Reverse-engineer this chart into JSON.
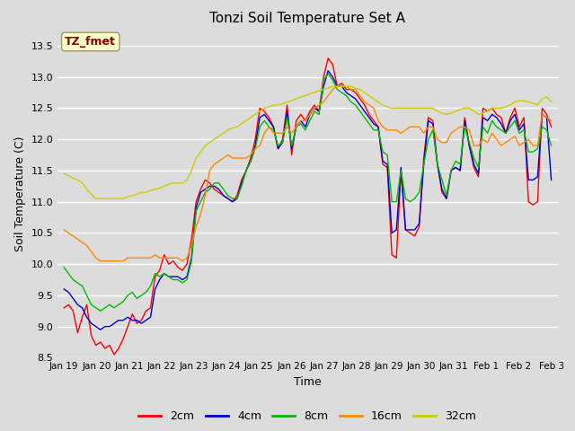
{
  "title": "Tonzi Soil Temperature Set A",
  "xlabel": "Time",
  "ylabel": "Soil Temperature (C)",
  "ylim": [
    8.5,
    13.75
  ],
  "fig_bg_color": "#dcdcdc",
  "plot_bg_color": "#dcdcdc",
  "annotation_text": "TZ_fmet",
  "annotation_color": "#8b0000",
  "annotation_bg": "#ffffcc",
  "legend_entries": [
    "2cm",
    "4cm",
    "8cm",
    "16cm",
    "32cm"
  ],
  "line_colors": [
    "#ff0000",
    "#0000cc",
    "#00bb00",
    "#ff8800",
    "#cccc00"
  ],
  "xtick_labels": [
    "Jan 19",
    "Jan 20",
    "Jan 21",
    "Jan 22",
    "Jan 23",
    "Jan 24",
    "Jan 25",
    "Jan 26",
    "Jan 27",
    "Jan 28",
    "Jan 29",
    "Jan 30",
    "Jan 31",
    "Feb 1",
    "Feb 2",
    "Feb 3"
  ],
  "series_2cm": [
    9.3,
    9.35,
    9.25,
    8.9,
    9.15,
    9.35,
    8.85,
    8.7,
    8.75,
    8.65,
    8.7,
    8.55,
    8.65,
    8.8,
    9.0,
    9.2,
    9.05,
    9.1,
    9.25,
    9.3,
    9.8,
    9.9,
    10.15,
    10.0,
    10.05,
    9.95,
    9.9,
    10.0,
    10.4,
    11.0,
    11.2,
    11.35,
    11.3,
    11.2,
    11.15,
    11.1,
    11.05,
    11.0,
    11.1,
    11.35,
    11.5,
    11.7,
    12.0,
    12.5,
    12.45,
    12.35,
    12.2,
    11.85,
    12.0,
    12.55,
    11.75,
    12.3,
    12.4,
    12.3,
    12.45,
    12.55,
    12.45,
    13.0,
    13.3,
    13.2,
    12.85,
    12.9,
    12.8,
    12.8,
    12.75,
    12.65,
    12.55,
    12.4,
    12.3,
    12.2,
    11.6,
    11.55,
    10.15,
    10.1,
    11.5,
    10.55,
    10.5,
    10.45,
    10.6,
    11.7,
    12.35,
    12.3,
    11.6,
    11.15,
    11.05,
    11.5,
    11.55,
    11.5,
    12.35,
    11.9,
    11.55,
    11.4,
    12.5,
    12.45,
    12.5,
    12.4,
    12.35,
    12.1,
    12.35,
    12.5,
    12.2,
    12.35,
    11.0,
    10.95,
    11.0,
    12.5,
    12.4,
    12.2
  ],
  "series_4cm": [
    9.6,
    9.55,
    9.45,
    9.35,
    9.3,
    9.15,
    9.05,
    9.0,
    8.95,
    9.0,
    9.0,
    9.05,
    9.1,
    9.1,
    9.15,
    9.1,
    9.1,
    9.05,
    9.1,
    9.15,
    9.6,
    9.75,
    9.85,
    9.8,
    9.8,
    9.8,
    9.75,
    9.8,
    10.1,
    10.9,
    11.15,
    11.2,
    11.25,
    11.25,
    11.2,
    11.1,
    11.05,
    11.0,
    11.05,
    11.3,
    11.5,
    11.65,
    11.9,
    12.35,
    12.4,
    12.3,
    12.2,
    11.85,
    11.95,
    12.45,
    11.85,
    12.2,
    12.3,
    12.2,
    12.4,
    12.5,
    12.45,
    12.85,
    13.1,
    13.0,
    12.85,
    12.85,
    12.75,
    12.7,
    12.65,
    12.55,
    12.45,
    12.35,
    12.25,
    12.2,
    11.65,
    11.6,
    10.5,
    10.55,
    11.55,
    10.55,
    10.55,
    10.55,
    10.65,
    11.6,
    12.3,
    12.25,
    11.6,
    11.2,
    11.05,
    11.5,
    11.55,
    11.5,
    12.3,
    11.9,
    11.6,
    11.45,
    12.35,
    12.3,
    12.4,
    12.35,
    12.25,
    12.1,
    12.3,
    12.4,
    12.15,
    12.25,
    11.35,
    11.35,
    11.4,
    12.4,
    12.35,
    11.35
  ],
  "series_8cm": [
    9.95,
    9.85,
    9.75,
    9.7,
    9.65,
    9.5,
    9.35,
    9.3,
    9.25,
    9.3,
    9.35,
    9.3,
    9.35,
    9.4,
    9.5,
    9.55,
    9.45,
    9.5,
    9.55,
    9.65,
    9.85,
    9.8,
    9.85,
    9.8,
    9.75,
    9.75,
    9.7,
    9.75,
    10.05,
    10.85,
    11.0,
    11.15,
    11.2,
    11.3,
    11.3,
    11.2,
    11.1,
    11.05,
    11.05,
    11.25,
    11.5,
    11.65,
    11.85,
    12.2,
    12.3,
    12.2,
    12.15,
    11.9,
    11.95,
    12.35,
    11.9,
    12.2,
    12.25,
    12.15,
    12.3,
    12.45,
    12.4,
    12.95,
    13.05,
    12.95,
    12.8,
    12.75,
    12.7,
    12.6,
    12.55,
    12.45,
    12.35,
    12.25,
    12.15,
    12.15,
    11.8,
    11.75,
    11.0,
    11.0,
    11.5,
    11.05,
    11.0,
    11.05,
    11.15,
    11.6,
    12.0,
    12.15,
    11.6,
    11.35,
    11.1,
    11.5,
    11.65,
    11.6,
    12.2,
    11.95,
    11.7,
    11.55,
    12.2,
    12.1,
    12.3,
    12.2,
    12.15,
    12.1,
    12.2,
    12.3,
    12.1,
    12.15,
    11.8,
    11.8,
    11.85,
    12.2,
    12.15,
    11.9
  ],
  "series_16cm": [
    10.55,
    10.5,
    10.45,
    10.4,
    10.35,
    10.3,
    10.2,
    10.1,
    10.05,
    10.05,
    10.05,
    10.05,
    10.05,
    10.05,
    10.1,
    10.1,
    10.1,
    10.1,
    10.1,
    10.1,
    10.15,
    10.1,
    10.1,
    10.1,
    10.1,
    10.1,
    10.05,
    10.1,
    10.3,
    10.6,
    10.8,
    11.1,
    11.5,
    11.6,
    11.65,
    11.7,
    11.75,
    11.7,
    11.7,
    11.7,
    11.7,
    11.75,
    11.85,
    11.9,
    12.1,
    12.2,
    12.1,
    12.1,
    12.1,
    12.2,
    12.1,
    12.2,
    12.3,
    12.3,
    12.4,
    12.5,
    12.55,
    12.6,
    12.7,
    12.8,
    12.85,
    12.85,
    12.85,
    12.8,
    12.8,
    12.7,
    12.6,
    12.55,
    12.5,
    12.3,
    12.2,
    12.15,
    12.15,
    12.15,
    12.1,
    12.15,
    12.2,
    12.2,
    12.2,
    12.1,
    12.2,
    12.2,
    12.0,
    11.95,
    11.95,
    12.1,
    12.15,
    12.2,
    12.2,
    12.15,
    11.9,
    11.9,
    12.0,
    11.95,
    12.1,
    12.0,
    11.9,
    11.95,
    12.0,
    12.05,
    11.9,
    11.95,
    12.0,
    11.9,
    11.9,
    12.4,
    12.35,
    12.3
  ],
  "series_32cm": [
    11.45,
    11.42,
    11.38,
    11.35,
    11.3,
    11.2,
    11.12,
    11.05,
    11.05,
    11.05,
    11.05,
    11.05,
    11.05,
    11.05,
    11.08,
    11.1,
    11.12,
    11.15,
    11.15,
    11.18,
    11.2,
    11.22,
    11.25,
    11.28,
    11.3,
    11.3,
    11.3,
    11.35,
    11.5,
    11.7,
    11.8,
    11.9,
    11.95,
    12.0,
    12.05,
    12.1,
    12.15,
    12.18,
    12.2,
    12.25,
    12.3,
    12.35,
    12.4,
    12.45,
    12.5,
    12.52,
    12.55,
    12.55,
    12.57,
    12.6,
    12.62,
    12.65,
    12.68,
    12.7,
    12.73,
    12.75,
    12.78,
    12.8,
    12.82,
    12.85,
    12.85,
    12.85,
    12.85,
    12.85,
    12.82,
    12.8,
    12.75,
    12.7,
    12.65,
    12.6,
    12.55,
    12.52,
    12.5,
    12.5,
    12.5,
    12.5,
    12.5,
    12.5,
    12.5,
    12.5,
    12.5,
    12.5,
    12.45,
    12.42,
    12.4,
    12.42,
    12.45,
    12.48,
    12.5,
    12.5,
    12.45,
    12.4,
    12.42,
    12.45,
    12.5,
    12.5,
    12.5,
    12.52,
    12.55,
    12.6,
    12.62,
    12.62,
    12.6,
    12.58,
    12.55,
    12.65,
    12.68,
    12.6
  ]
}
